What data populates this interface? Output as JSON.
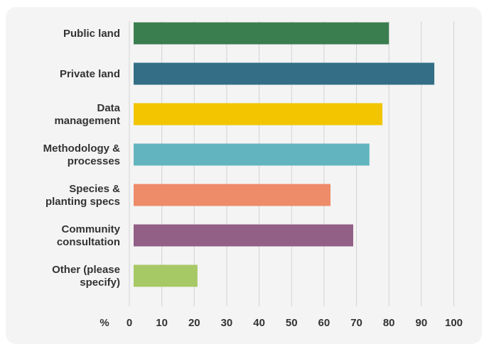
{
  "chart_data": {
    "type": "bar",
    "orientation": "horizontal",
    "categories": [
      [
        "Public land"
      ],
      [
        "Private land"
      ],
      [
        "Data",
        "management"
      ],
      [
        "Methodology &",
        "processes"
      ],
      [
        "Species &",
        "planting specs"
      ],
      [
        "Community",
        "consultation"
      ],
      [
        "Other (please",
        "specify)"
      ]
    ],
    "values": [
      80,
      94,
      78,
      74,
      62,
      69,
      21
    ],
    "colors": [
      "#3a7d4f",
      "#336e86",
      "#f2c500",
      "#62b5bf",
      "#ee8b68",
      "#925f86",
      "#a6c965"
    ],
    "xlim": [
      0,
      100
    ],
    "xticks": [
      0,
      10,
      20,
      30,
      40,
      50,
      60,
      70,
      80,
      90,
      100
    ],
    "xunit": "%",
    "grid": true
  }
}
